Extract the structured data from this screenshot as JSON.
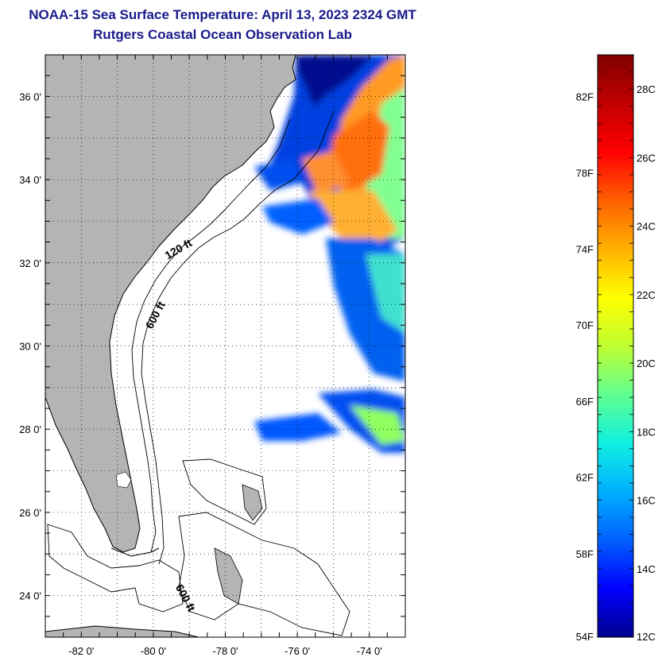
{
  "header": {
    "title": "NOAA-15 Sea Surface Temperature:  April 13, 2023 2324 GMT",
    "subtitle": "Rutgers Coastal Ocean Observation Lab"
  },
  "map": {
    "lon_range": [
      -83,
      -73
    ],
    "lat_range": [
      23,
      37
    ],
    "x_tick_labels": [
      {
        "lon": -82,
        "label": "-82 0'"
      },
      {
        "lon": -80,
        "label": "-80 0'"
      },
      {
        "lon": -78,
        "label": "-78 0'"
      },
      {
        "lon": -76,
        "label": "-76 0'"
      },
      {
        "lon": -74,
        "label": "-74 0'"
      }
    ],
    "y_tick_labels": [
      {
        "lat": 36,
        "label": "36 0'"
      },
      {
        "lat": 34,
        "label": "34 0'"
      },
      {
        "lat": 32,
        "label": "32 0'"
      },
      {
        "lat": 30,
        "label": "30 0'"
      },
      {
        "lat": 28,
        "label": "28 0'"
      },
      {
        "lat": 26,
        "label": "26 0'"
      },
      {
        "lat": 24,
        "label": "24 0'"
      }
    ],
    "contour_labels": [
      {
        "text": "120 ft",
        "lon": -79.25,
        "lat": 32.25,
        "angle": -30
      },
      {
        "text": "600 ft",
        "lon": -79.85,
        "lat": 30.7,
        "angle": -62
      },
      {
        "text": "600 ft",
        "lon": -79.2,
        "lat": 23.9,
        "angle": 62
      }
    ],
    "colors": {
      "land": "#b4b4b4",
      "ocean": "#ffffff",
      "outline": "#000000",
      "grid": "#000000"
    }
  },
  "colorbar": {
    "temp_min_c": 12,
    "temp_max_c": 29,
    "fahrenheit_labels": [
      {
        "value_c": 12.22,
        "label": "54F"
      },
      {
        "value_c": 14.44,
        "label": "58F"
      },
      {
        "value_c": 16.67,
        "label": "62F"
      },
      {
        "value_c": 18.89,
        "label": "66F"
      },
      {
        "value_c": 21.11,
        "label": "70F"
      },
      {
        "value_c": 23.33,
        "label": "74F"
      },
      {
        "value_c": 25.56,
        "label": "78F"
      },
      {
        "value_c": 27.78,
        "label": "82F"
      }
    ],
    "celsius_labels": [
      {
        "value_c": 12,
        "label": "12C"
      },
      {
        "value_c": 14,
        "label": "14C"
      },
      {
        "value_c": 16,
        "label": "16C"
      },
      {
        "value_c": 18,
        "label": "18C"
      },
      {
        "value_c": 20,
        "label": "20C"
      },
      {
        "value_c": 22,
        "label": "22C"
      },
      {
        "value_c": 24,
        "label": "24C"
      },
      {
        "value_c": 26,
        "label": "26C"
      },
      {
        "value_c": 28,
        "label": "28C"
      }
    ],
    "stops": [
      "#00008f",
      "#0000ff",
      "#0060ff",
      "#00b0ff",
      "#10f0e0",
      "#60ff90",
      "#c0ff30",
      "#ffff00",
      "#ffb000",
      "#ff6000",
      "#ff0000",
      "#c00000",
      "#800000"
    ]
  }
}
